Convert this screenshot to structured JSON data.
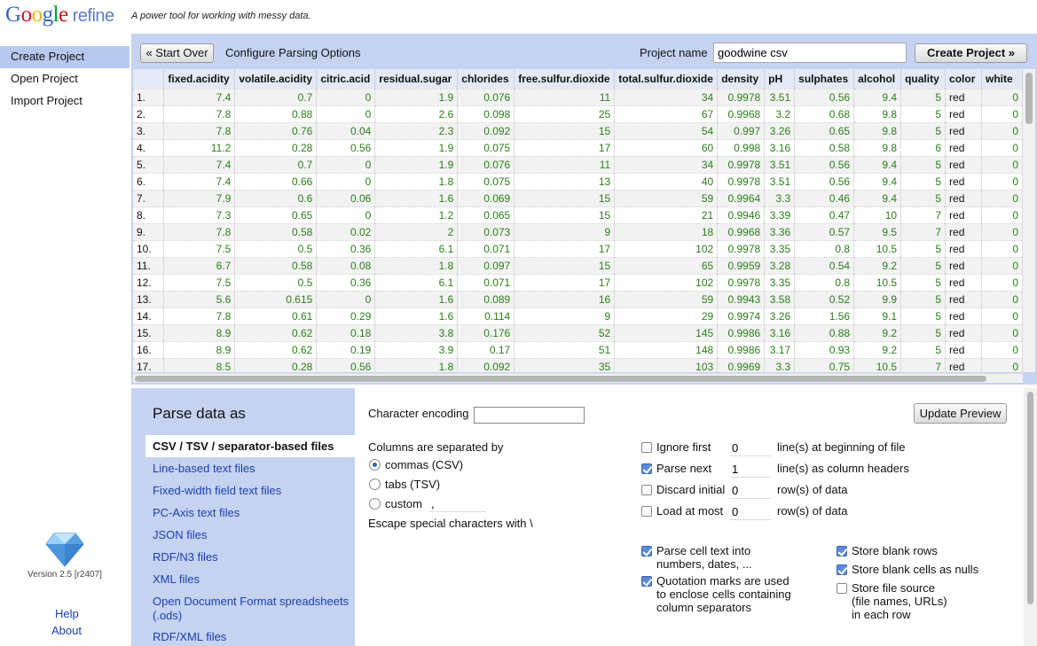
{
  "app": {
    "logo_google": [
      "G",
      "o",
      "o",
      "g",
      "l",
      "e"
    ],
    "logo_refine": "refine",
    "tagline": "A power tool for working with messy data."
  },
  "nav": {
    "items": [
      "Create Project",
      "Open Project",
      "Import Project"
    ],
    "version": "Version 2.5 [r2407]",
    "help": "Help",
    "about": "About"
  },
  "toolbar": {
    "start_over": "« Start Over",
    "title": "Configure Parsing Options",
    "project_name_label": "Project name",
    "project_name_value": "goodwine csv",
    "create_project": "Create Project »"
  },
  "table": {
    "columns": [
      "",
      "fixed.acidity",
      "volatile.acidity",
      "citric.acid",
      "residual.sugar",
      "chlorides",
      "free.sulfur.dioxide",
      "total.sulfur.dioxide",
      "density",
      "pH",
      "sulphates",
      "alcohol",
      "quality",
      "color",
      "white"
    ],
    "rows": [
      [
        "1.",
        "7.4",
        "0.7",
        "0",
        "1.9",
        "0.076",
        "11",
        "34",
        "0.9978",
        "3.51",
        "0.56",
        "9.4",
        "5",
        "red",
        "0"
      ],
      [
        "2.",
        "7.8",
        "0.88",
        "0",
        "2.6",
        "0.098",
        "25",
        "67",
        "0.9968",
        "3.2",
        "0.68",
        "9.8",
        "5",
        "red",
        "0"
      ],
      [
        "3.",
        "7.8",
        "0.76",
        "0.04",
        "2.3",
        "0.092",
        "15",
        "54",
        "0.997",
        "3.26",
        "0.65",
        "9.8",
        "5",
        "red",
        "0"
      ],
      [
        "4.",
        "11.2",
        "0.28",
        "0.56",
        "1.9",
        "0.075",
        "17",
        "60",
        "0.998",
        "3.16",
        "0.58",
        "9.8",
        "6",
        "red",
        "0"
      ],
      [
        "5.",
        "7.4",
        "0.7",
        "0",
        "1.9",
        "0.076",
        "11",
        "34",
        "0.9978",
        "3.51",
        "0.56",
        "9.4",
        "5",
        "red",
        "0"
      ],
      [
        "6.",
        "7.4",
        "0.66",
        "0",
        "1.8",
        "0.075",
        "13",
        "40",
        "0.9978",
        "3.51",
        "0.56",
        "9.4",
        "5",
        "red",
        "0"
      ],
      [
        "7.",
        "7.9",
        "0.6",
        "0.06",
        "1.6",
        "0.069",
        "15",
        "59",
        "0.9964",
        "3.3",
        "0.46",
        "9.4",
        "5",
        "red",
        "0"
      ],
      [
        "8.",
        "7.3",
        "0.65",
        "0",
        "1.2",
        "0.065",
        "15",
        "21",
        "0.9946",
        "3.39",
        "0.47",
        "10",
        "7",
        "red",
        "0"
      ],
      [
        "9.",
        "7.8",
        "0.58",
        "0.02",
        "2",
        "0.073",
        "9",
        "18",
        "0.9968",
        "3.36",
        "0.57",
        "9.5",
        "7",
        "red",
        "0"
      ],
      [
        "10.",
        "7.5",
        "0.5",
        "0.36",
        "6.1",
        "0.071",
        "17",
        "102",
        "0.9978",
        "3.35",
        "0.8",
        "10.5",
        "5",
        "red",
        "0"
      ],
      [
        "11.",
        "6.7",
        "0.58",
        "0.08",
        "1.8",
        "0.097",
        "15",
        "65",
        "0.9959",
        "3.28",
        "0.54",
        "9.2",
        "5",
        "red",
        "0"
      ],
      [
        "12.",
        "7.5",
        "0.5",
        "0.36",
        "6.1",
        "0.071",
        "17",
        "102",
        "0.9978",
        "3.35",
        "0.8",
        "10.5",
        "5",
        "red",
        "0"
      ],
      [
        "13.",
        "5.6",
        "0.615",
        "0",
        "1.6",
        "0.089",
        "16",
        "59",
        "0.9943",
        "3.58",
        "0.52",
        "9.9",
        "5",
        "red",
        "0"
      ],
      [
        "14.",
        "7.8",
        "0.61",
        "0.29",
        "1.6",
        "0.114",
        "9",
        "29",
        "0.9974",
        "3.26",
        "1.56",
        "9.1",
        "5",
        "red",
        "0"
      ],
      [
        "15.",
        "8.9",
        "0.62",
        "0.18",
        "3.8",
        "0.176",
        "52",
        "145",
        "0.9986",
        "3.16",
        "0.88",
        "9.2",
        "5",
        "red",
        "0"
      ],
      [
        "16.",
        "8.9",
        "0.62",
        "0.19",
        "3.9",
        "0.17",
        "51",
        "148",
        "0.9986",
        "3.17",
        "0.93",
        "9.2",
        "5",
        "red",
        "0"
      ],
      [
        "17.",
        "8.5",
        "0.28",
        "0.56",
        "1.8",
        "0.092",
        "35",
        "103",
        "0.9969",
        "3.3",
        "0.75",
        "10.5",
        "7",
        "red",
        "0"
      ]
    ]
  },
  "parse": {
    "heading": "Parse data as",
    "formats": [
      "CSV / TSV / separator-based files",
      "Line-based text files",
      "Fixed-width field text files",
      "PC-Axis text files",
      "JSON files",
      "RDF/N3 files",
      "XML files",
      "Open Document Format spreadsheets (.ods)",
      "RDF/XML files"
    ],
    "selected_format": 0
  },
  "options": {
    "char_encoding_label": "Character encoding",
    "char_encoding_value": "",
    "update_preview": "Update Preview",
    "separator_label": "Columns are separated by",
    "sep_commas": "commas (CSV)",
    "sep_tabs": "tabs (TSV)",
    "sep_custom": "custom",
    "custom_value": ",",
    "escape_label": "Escape special characters with \\",
    "ignore_first": "Ignore first",
    "ignore_first_value": "0",
    "ignore_first_suffix": "line(s) at beginning of file",
    "parse_next": "Parse next",
    "parse_next_value": "1",
    "parse_next_suffix": "line(s) as column headers",
    "discard_initial": "Discard initial",
    "discard_initial_value": "0",
    "discard_initial_suffix": "row(s) of data",
    "load_at_most": "Load at most",
    "load_at_most_value": "0",
    "load_at_most_suffix": "row(s) of data",
    "parse_cell_text_1": "Parse cell text into",
    "parse_cell_text_2": "numbers, dates, ...",
    "quotation_1": "Quotation marks are used",
    "quotation_2": "to enclose cells containing",
    "quotation_3": "column separators",
    "store_blank_rows": "Store blank rows",
    "store_blank_cells": "Store blank cells as nulls",
    "store_file_source_1": "Store file source",
    "store_file_source_2": "(file names, URLs)",
    "store_file_source_3": "in each row"
  }
}
